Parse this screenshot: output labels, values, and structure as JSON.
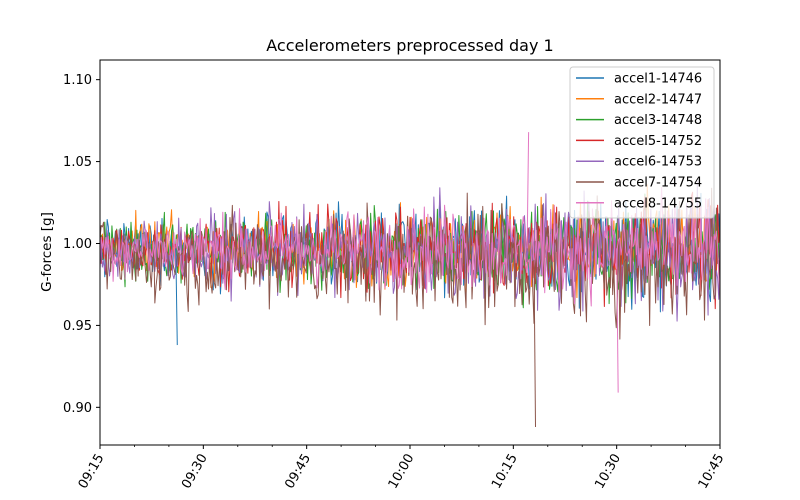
{
  "chart_data": {
    "type": "line",
    "title": "Accelerometers preprocessed day 1",
    "xlabel": "",
    "ylabel": "G-forces [g]",
    "x_range": [
      "09:15",
      "10:45"
    ],
    "ylim": [
      0.877,
      1.112
    ],
    "x_ticks": [
      "09:15",
      "09:30",
      "09:45",
      "10:00",
      "10:15",
      "10:30",
      "10:45"
    ],
    "y_ticks": [
      "0.90",
      "0.95",
      "1.00",
      "1.05",
      "1.10"
    ],
    "grid": false,
    "legend_position": "top-right",
    "series": [
      {
        "name": "accel1-14746",
        "color": "#1f77b4",
        "center": 0.997,
        "amplitude": 0.03
      },
      {
        "name": "accel2-14747",
        "color": "#ff7f0e",
        "center": 0.998,
        "amplitude": 0.028
      },
      {
        "name": "accel3-14748",
        "color": "#2ca02c",
        "center": 0.996,
        "amplitude": 0.03
      },
      {
        "name": "accel5-14752",
        "color": "#d62728",
        "center": 0.997,
        "amplitude": 0.03
      },
      {
        "name": "accel6-14753",
        "color": "#9467bd",
        "center": 0.995,
        "amplitude": 0.035
      },
      {
        "name": "accel7-14754",
        "color": "#8c564b",
        "center": 0.99,
        "amplitude": 0.04
      },
      {
        "name": "accel8-14755",
        "color": "#e377c2",
        "center": 0.997,
        "amplitude": 0.03
      }
    ],
    "notable_points": [
      {
        "series": "accel1-14746",
        "time": "09:26",
        "value": 0.938
      },
      {
        "series": "accel7-14754",
        "time": "10:18",
        "value": 0.888
      },
      {
        "series": "accel8-14755",
        "time": "10:17",
        "value": 1.068
      },
      {
        "series": "accel8-14755",
        "time": "10:30",
        "value": 0.909
      }
    ]
  }
}
